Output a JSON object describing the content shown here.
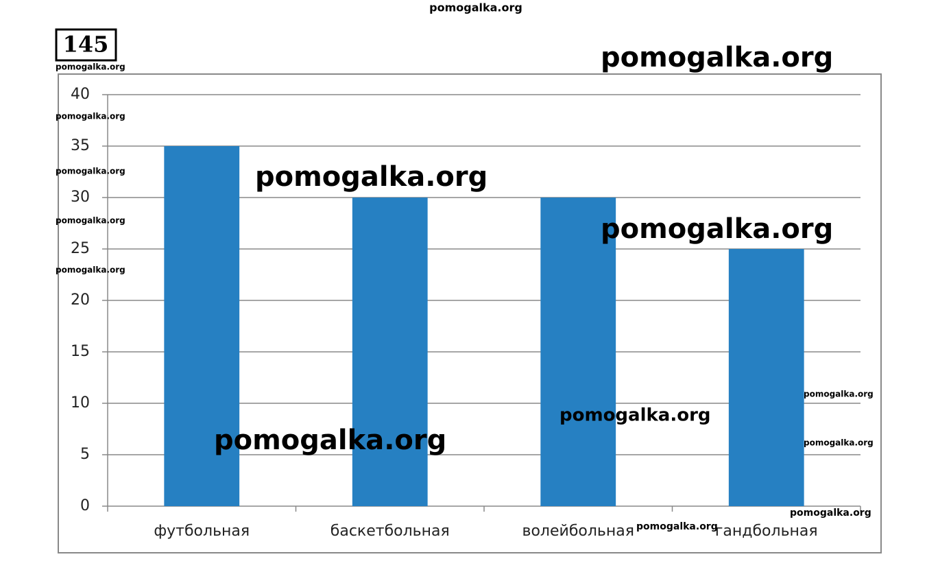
{
  "chart_data": {
    "type": "bar",
    "problem_number": "145",
    "categories": [
      "футбольная",
      "баскетбольная",
      "волейбольная",
      "гандбольная"
    ],
    "values": [
      35,
      30,
      30,
      25
    ],
    "color": "#2680c2",
    "ylim": [
      0,
      40
    ],
    "yticks": [
      0,
      5,
      10,
      15,
      20,
      25,
      30,
      35,
      40
    ],
    "grid": true,
    "annotations": [
      "pomogalka.org",
      "pomogalka.org",
      "pomogalka.org",
      "pomogalka.org",
      "pomogalka.org",
      "pomogalka.org",
      "pomogalka.org",
      "pomogalka.org",
      "pomogalka.org",
      "pomogalka.org",
      "pomogalka.org",
      "pomogalka.org",
      "pomogalka.org",
      "pomogalka.org",
      "pomogalka.org"
    ]
  }
}
